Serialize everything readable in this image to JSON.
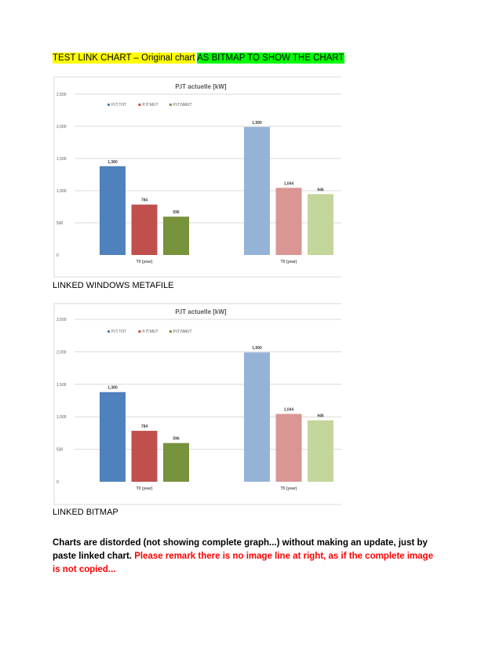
{
  "heading": {
    "part1": "TEST LINK CHART – Original chart",
    "part2": "AS BITMAP TO SHOW THE CHART",
    "part1_highlight": "#ffff00",
    "part2_highlight": "#00ff00"
  },
  "captions": {
    "first": "LINKED WINDOWS METAFILE",
    "second": "LINKED BITMAP"
  },
  "note": {
    "black": "Charts are distorded (not showing complete graph...) without making an update, just by paste linked chart.",
    "red": "Please remark there is no image line at right, as if the complete image is not copied..."
  },
  "chart_data": [
    {
      "type": "bar",
      "title": "P.IT actuelle [kW]",
      "categories": [
        "T0 (year)",
        "T5 (year)"
      ],
      "series": [
        {
          "name": "P.IT.TOT",
          "values": [
            1380,
            1990
          ],
          "color": "#4f81bd",
          "faded_color": "#95b3d7"
        },
        {
          "name": "P.IT.MUT",
          "values": [
            784,
            1044
          ],
          "color": "#c0504d",
          "faded_color": "#da9694"
        },
        {
          "name": "P.IT.NMUT",
          "values": [
            596,
            946
          ],
          "color": "#77933c",
          "faded_color": "#c3d69b"
        }
      ],
      "data_labels": [
        [
          "1,380",
          "1,990"
        ],
        [
          "784",
          "1,044"
        ],
        [
          "596",
          "946"
        ]
      ],
      "yticks": [
        "0",
        "500",
        "1,000",
        "1,500",
        "2,000",
        "2,500"
      ],
      "ylim": [
        0,
        2500
      ],
      "grid": true,
      "legend": "top-left"
    },
    {
      "type": "bar",
      "title": "P.IT actuelle [kW]",
      "categories": [
        "T0 (year)",
        "T5 (year)"
      ],
      "series": [
        {
          "name": "P.IT.TOT",
          "values": [
            1380,
            1990
          ],
          "color": "#4f81bd",
          "faded_color": "#95b3d7"
        },
        {
          "name": "P.IT.MUT",
          "values": [
            784,
            1044
          ],
          "color": "#c0504d",
          "faded_color": "#da9694"
        },
        {
          "name": "P.IT.NMUT",
          "values": [
            596,
            946
          ],
          "color": "#77933c",
          "faded_color": "#c3d69b"
        }
      ],
      "data_labels": [
        [
          "1,380",
          "1,990"
        ],
        [
          "784",
          "1,044"
        ],
        [
          "596",
          "946"
        ]
      ],
      "yticks": [
        "0",
        "500",
        "1,000",
        "1,500",
        "2,000",
        "2,500"
      ],
      "ylim": [
        0,
        2500
      ],
      "grid": true,
      "legend": "top-left"
    }
  ]
}
